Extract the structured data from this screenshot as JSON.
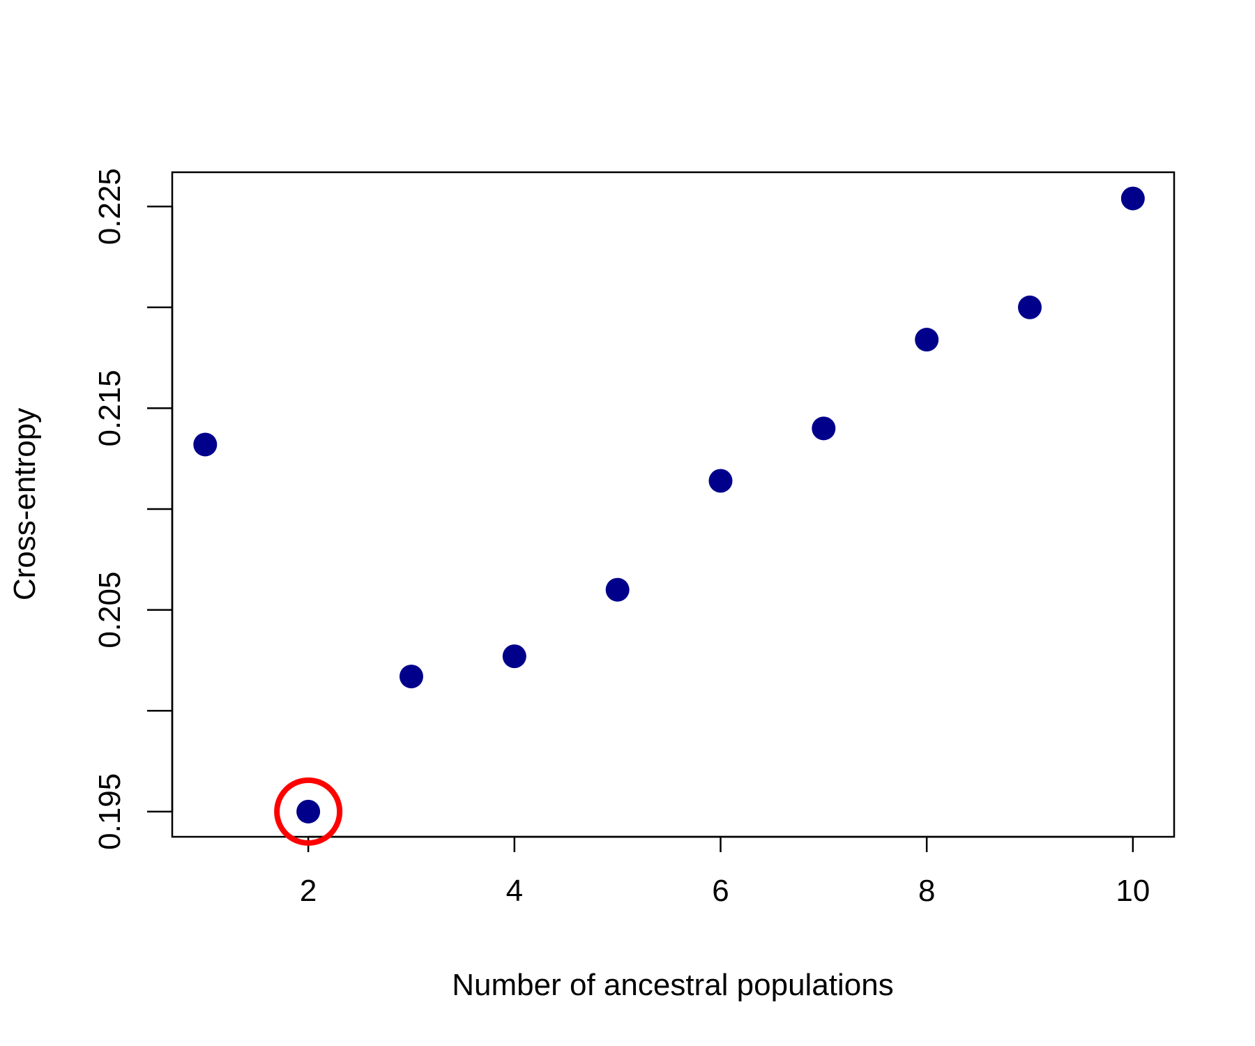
{
  "chart_data": {
    "type": "scatter",
    "title": "",
    "xlabel": "Number of ancestral populations",
    "ylabel": "Cross-entropy",
    "xlim": [
      0.68,
      10.4
    ],
    "ylim": [
      0.19375,
      0.2267
    ],
    "x_ticks": [
      2,
      4,
      6,
      8,
      10
    ],
    "x_tick_labels": [
      "2",
      "4",
      "6",
      "8",
      "10"
    ],
    "y_ticks": [
      0.195,
      0.2,
      0.205,
      0.21,
      0.215,
      0.22,
      0.225
    ],
    "y_tick_labels": [
      "0.195",
      "",
      "0.205",
      "",
      "0.215",
      "",
      "0.225"
    ],
    "grid": false,
    "legend": null,
    "series": [
      {
        "color": "#00008b",
        "marker": "filled-circle",
        "x": [
          1,
          2,
          3,
          4,
          5,
          6,
          7,
          8,
          9,
          10
        ],
        "y": [
          0.2132,
          0.195,
          0.2017,
          0.2027,
          0.206,
          0.2114,
          0.214,
          0.2184,
          0.22,
          0.2254
        ]
      }
    ],
    "annotations": [
      {
        "type": "circle",
        "x": 2,
        "y": 0.195,
        "color": "#ff0000",
        "note": ""
      }
    ]
  }
}
